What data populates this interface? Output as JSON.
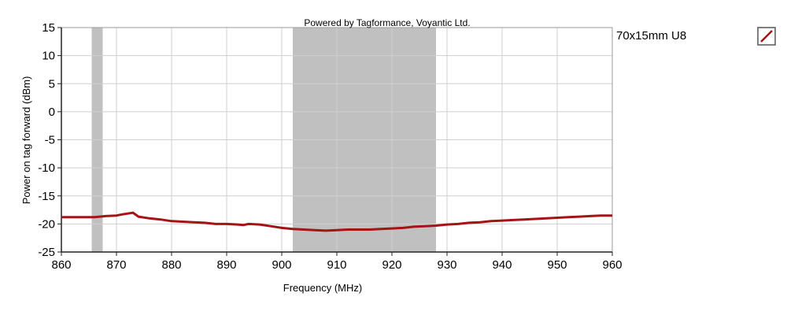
{
  "chart_data": {
    "type": "line",
    "credit": "Powered by Tagformance, Voyantic Ltd.",
    "xlabel": "Frequency (MHz)",
    "ylabel": "Power on tag forward (dBm)",
    "xlim": [
      860,
      960
    ],
    "ylim": [
      -25,
      15
    ],
    "x_ticks": [
      860,
      870,
      880,
      890,
      900,
      910,
      920,
      930,
      940,
      950,
      960
    ],
    "y_ticks": [
      15,
      10,
      5,
      0,
      -5,
      -10,
      -15,
      -20,
      -25
    ],
    "grid": true,
    "shaded_bands": [
      {
        "from": 865.5,
        "to": 867.5
      },
      {
        "from": 902,
        "to": 928
      }
    ],
    "series": [
      {
        "name": "70x15mm U8",
        "color": "#a31515",
        "x": [
          860,
          862,
          864,
          866,
          868,
          870,
          871,
          873,
          874,
          876,
          878,
          880,
          882,
          884,
          886,
          888,
          890,
          892,
          893,
          894,
          896,
          898,
          900,
          902,
          904,
          906,
          908,
          910,
          912,
          914,
          916,
          918,
          920,
          922,
          924,
          926,
          928,
          930,
          932,
          934,
          936,
          938,
          940,
          942,
          944,
          946,
          948,
          950,
          952,
          954,
          956,
          958,
          960
        ],
        "y": [
          -18.8,
          -18.8,
          -18.8,
          -18.8,
          -18.6,
          -18.5,
          -18.3,
          -18.0,
          -18.7,
          -19.0,
          -19.2,
          -19.5,
          -19.6,
          -19.7,
          -19.8,
          -20.0,
          -20.0,
          -20.1,
          -20.2,
          -20.0,
          -20.1,
          -20.4,
          -20.7,
          -20.9,
          -21.0,
          -21.1,
          -21.2,
          -21.1,
          -21.0,
          -21.0,
          -21.0,
          -20.9,
          -20.8,
          -20.7,
          -20.5,
          -20.4,
          -20.3,
          -20.1,
          -20.0,
          -19.8,
          -19.7,
          -19.5,
          -19.4,
          -19.3,
          -19.2,
          -19.1,
          -19.0,
          -18.9,
          -18.8,
          -18.7,
          -18.6,
          -18.5,
          -18.5
        ]
      }
    ]
  }
}
